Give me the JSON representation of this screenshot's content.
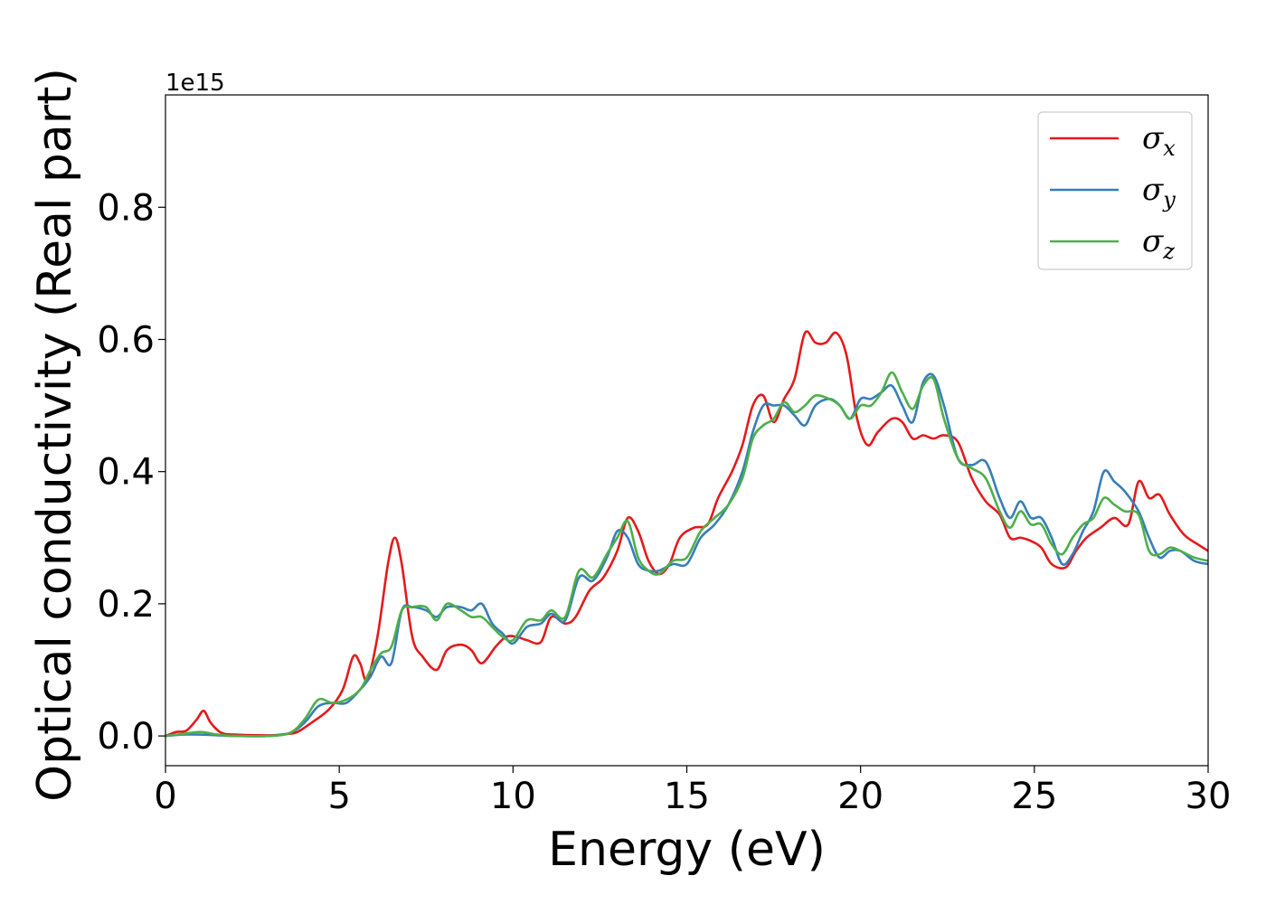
{
  "chart_data": {
    "type": "line",
    "title": "",
    "xlabel": "Energy (eV)",
    "ylabel": "Optical conductivity (Real part)",
    "y_offset_label": "1e15",
    "xlim": [
      0,
      30
    ],
    "ylim": [
      -0.045,
      0.97
    ],
    "xticks": [
      0,
      5,
      10,
      15,
      20,
      25,
      30
    ],
    "xtick_labels": [
      "0",
      "5",
      "10",
      "15",
      "20",
      "25",
      "30"
    ],
    "yticks": [
      0.0,
      0.2,
      0.4,
      0.6,
      0.8
    ],
    "ytick_labels": [
      "0.0",
      "0.2",
      "0.4",
      "0.6",
      "0.8"
    ],
    "grid": false,
    "legend": "top-right",
    "series": [
      {
        "name": "σx",
        "symbol": "σ",
        "sub": "x",
        "color": "#e41a1c",
        "x": [
          0,
          0.3,
          0.6,
          0.9,
          1.1,
          1.3,
          1.6,
          2,
          3,
          3.5,
          3.8,
          4.2,
          4.7,
          5.1,
          5.4,
          5.6,
          5.8,
          6.1,
          6.4,
          6.6,
          6.8,
          7.1,
          7.4,
          7.8,
          8.1,
          8.5,
          8.8,
          9.1,
          9.5,
          9.8,
          10.1,
          10.4,
          10.8,
          11.1,
          11.5,
          11.8,
          12.2,
          12.6,
          13,
          13.3,
          13.6,
          13.9,
          14.2,
          14.5,
          14.8,
          15.2,
          15.6,
          15.9,
          16.3,
          16.6,
          16.9,
          17.2,
          17.5,
          17.8,
          18.1,
          18.4,
          18.7,
          19,
          19.3,
          19.6,
          19.9,
          20.2,
          20.5,
          20.9,
          21.2,
          21.5,
          21.8,
          22.1,
          22.4,
          22.8,
          23.2,
          23.6,
          24,
          24.3,
          24.6,
          24.9,
          25.2,
          25.5,
          25.9,
          26.2,
          26.5,
          26.9,
          27.3,
          27.7,
          28,
          28.3,
          28.6,
          28.9,
          29.3,
          29.7,
          30
        ],
        "y": [
          0,
          0.006,
          0.008,
          0.025,
          0.038,
          0.02,
          0.005,
          0.002,
          0.001,
          0.003,
          0.006,
          0.02,
          0.04,
          0.07,
          0.12,
          0.11,
          0.085,
          0.15,
          0.26,
          0.3,
          0.26,
          0.15,
          0.12,
          0.1,
          0.13,
          0.138,
          0.13,
          0.11,
          0.135,
          0.15,
          0.15,
          0.145,
          0.142,
          0.18,
          0.17,
          0.18,
          0.22,
          0.24,
          0.28,
          0.33,
          0.31,
          0.265,
          0.245,
          0.26,
          0.3,
          0.315,
          0.32,
          0.36,
          0.4,
          0.44,
          0.5,
          0.515,
          0.475,
          0.51,
          0.54,
          0.61,
          0.595,
          0.595,
          0.61,
          0.575,
          0.48,
          0.44,
          0.46,
          0.48,
          0.475,
          0.45,
          0.455,
          0.45,
          0.455,
          0.445,
          0.39,
          0.355,
          0.335,
          0.3,
          0.3,
          0.295,
          0.285,
          0.26,
          0.255,
          0.28,
          0.3,
          0.315,
          0.33,
          0.32,
          0.385,
          0.36,
          0.365,
          0.335,
          0.305,
          0.29,
          0.28
        ]
      },
      {
        "name": "σy",
        "symbol": "σ",
        "sub": "y",
        "color": "#377eb8",
        "x": [
          0,
          0.5,
          1,
          1.5,
          2,
          3,
          3.6,
          4,
          4.4,
          4.8,
          5.2,
          5.6,
          5.9,
          6.2,
          6.5,
          6.8,
          7.1,
          7.5,
          7.8,
          8.1,
          8.5,
          8.8,
          9.1,
          9.4,
          9.7,
          10,
          10.4,
          10.8,
          11.1,
          11.5,
          11.9,
          12.3,
          12.7,
          13,
          13.3,
          13.6,
          13.9,
          14.2,
          14.6,
          15,
          15.4,
          15.8,
          16.2,
          16.6,
          16.9,
          17.2,
          17.5,
          17.8,
          18.1,
          18.4,
          18.7,
          19.1,
          19.4,
          19.7,
          20,
          20.3,
          20.6,
          20.9,
          21.2,
          21.5,
          21.8,
          22.1,
          22.4,
          22.8,
          23.2,
          23.6,
          24,
          24.3,
          24.6,
          24.9,
          25.2,
          25.5,
          25.8,
          26.1,
          26.4,
          26.7,
          27,
          27.3,
          27.6,
          28,
          28.3,
          28.6,
          28.9,
          29.2,
          29.6,
          30
        ],
        "y": [
          0,
          0.002,
          0.002,
          0.001,
          0,
          0,
          0.005,
          0.02,
          0.045,
          0.05,
          0.05,
          0.07,
          0.09,
          0.12,
          0.11,
          0.19,
          0.195,
          0.19,
          0.18,
          0.195,
          0.195,
          0.19,
          0.2,
          0.17,
          0.155,
          0.14,
          0.165,
          0.17,
          0.185,
          0.175,
          0.24,
          0.235,
          0.27,
          0.31,
          0.3,
          0.26,
          0.25,
          0.25,
          0.26,
          0.26,
          0.3,
          0.32,
          0.35,
          0.4,
          0.46,
          0.5,
          0.5,
          0.5,
          0.485,
          0.47,
          0.5,
          0.51,
          0.5,
          0.48,
          0.51,
          0.51,
          0.52,
          0.53,
          0.5,
          0.475,
          0.535,
          0.545,
          0.5,
          0.42,
          0.41,
          0.415,
          0.36,
          0.33,
          0.355,
          0.33,
          0.33,
          0.3,
          0.26,
          0.275,
          0.31,
          0.34,
          0.4,
          0.385,
          0.37,
          0.34,
          0.3,
          0.27,
          0.28,
          0.28,
          0.265,
          0.26
        ]
      },
      {
        "name": "σz",
        "symbol": "σ",
        "sub": "z",
        "color": "#4daf4a",
        "x": [
          0,
          0.5,
          1,
          1.5,
          2,
          3,
          3.6,
          4,
          4.4,
          4.8,
          5.2,
          5.6,
          5.9,
          6.2,
          6.5,
          6.8,
          7.1,
          7.5,
          7.8,
          8.1,
          8.5,
          8.8,
          9.1,
          9.4,
          9.7,
          10,
          10.4,
          10.8,
          11.1,
          11.5,
          11.9,
          12.3,
          12.7,
          13,
          13.3,
          13.6,
          13.9,
          14.2,
          14.6,
          15,
          15.4,
          15.8,
          16.2,
          16.6,
          16.9,
          17.2,
          17.5,
          17.8,
          18.1,
          18.4,
          18.7,
          19.1,
          19.4,
          19.7,
          20,
          20.3,
          20.6,
          20.9,
          21.2,
          21.5,
          21.8,
          22.1,
          22.4,
          22.8,
          23.2,
          23.6,
          24,
          24.3,
          24.6,
          24.9,
          25.2,
          25.5,
          25.8,
          26.1,
          26.4,
          26.7,
          27,
          27.3,
          27.6,
          28,
          28.3,
          28.6,
          28.9,
          29.2,
          29.6,
          30
        ],
        "y": [
          0,
          0.003,
          0.006,
          0.002,
          0,
          0,
          0.005,
          0.025,
          0.055,
          0.05,
          0.055,
          0.07,
          0.1,
          0.125,
          0.135,
          0.19,
          0.195,
          0.195,
          0.175,
          0.2,
          0.19,
          0.18,
          0.18,
          0.165,
          0.15,
          0.145,
          0.175,
          0.175,
          0.19,
          0.18,
          0.25,
          0.24,
          0.275,
          0.3,
          0.325,
          0.27,
          0.25,
          0.245,
          0.265,
          0.27,
          0.31,
          0.33,
          0.35,
          0.39,
          0.45,
          0.47,
          0.48,
          0.505,
          0.49,
          0.5,
          0.515,
          0.51,
          0.5,
          0.48,
          0.5,
          0.5,
          0.52,
          0.55,
          0.52,
          0.495,
          0.53,
          0.54,
          0.48,
          0.42,
          0.405,
          0.39,
          0.34,
          0.315,
          0.34,
          0.32,
          0.32,
          0.29,
          0.275,
          0.3,
          0.32,
          0.33,
          0.36,
          0.35,
          0.34,
          0.335,
          0.28,
          0.275,
          0.285,
          0.28,
          0.27,
          0.265
        ]
      }
    ]
  }
}
